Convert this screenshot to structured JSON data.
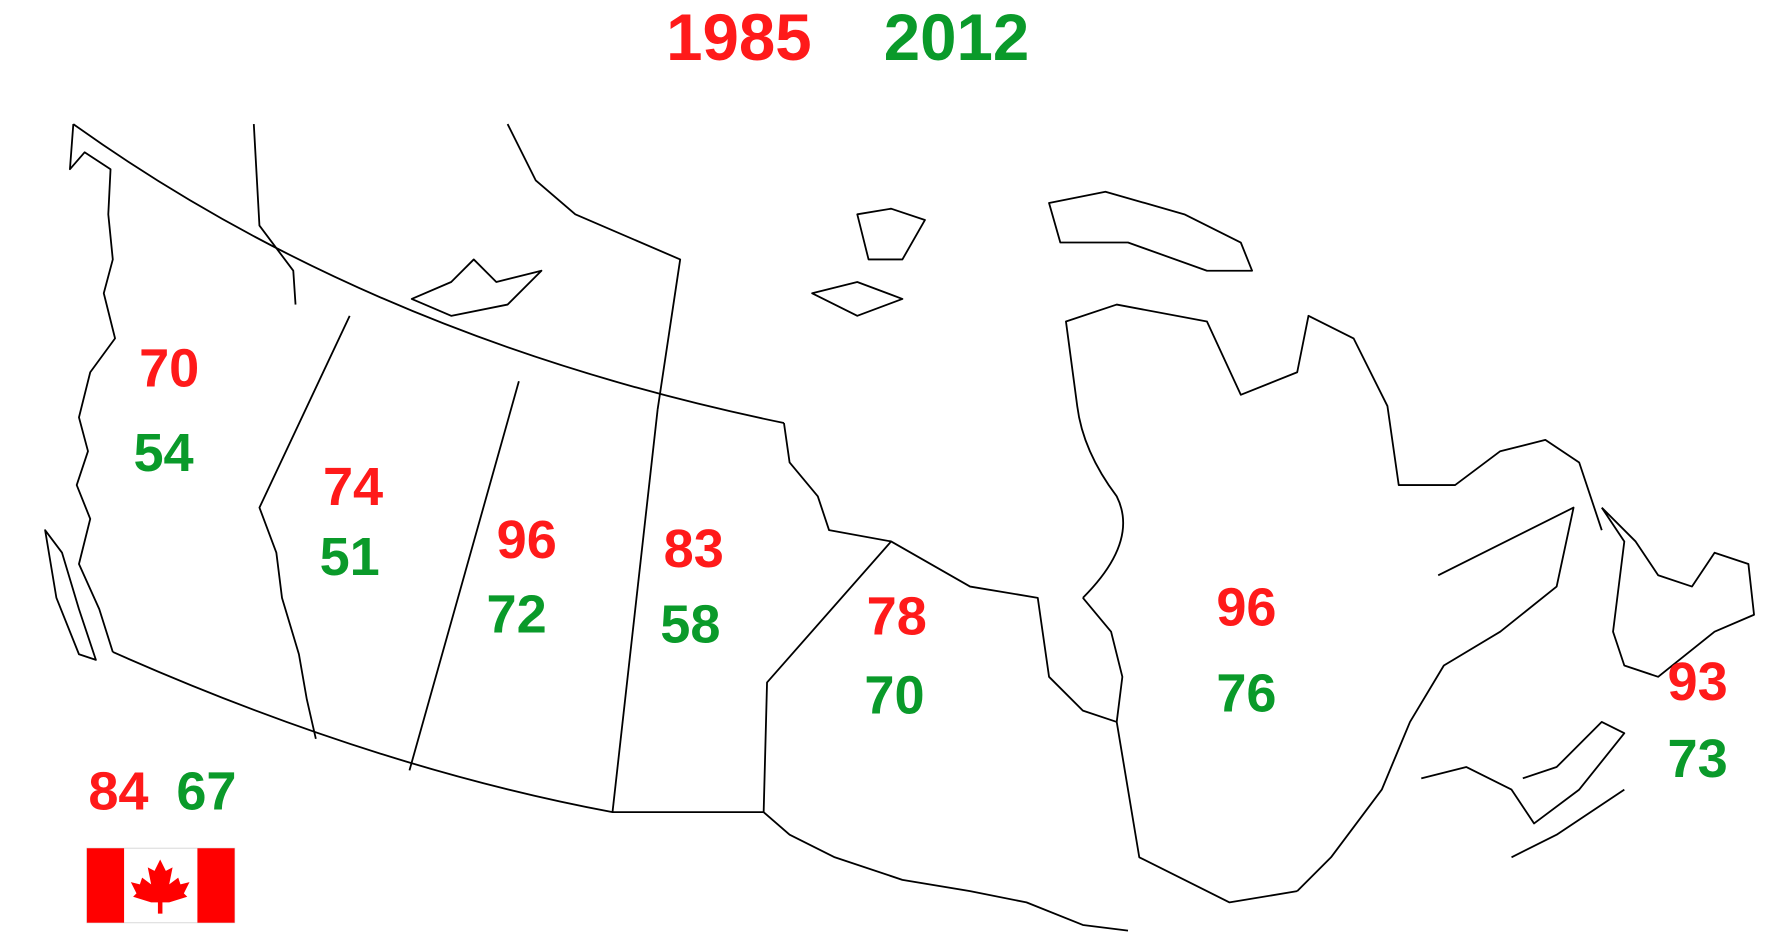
{
  "legend": [
    {
      "label": "1985",
      "color": "#ff1a1a"
    },
    {
      "label": "2012",
      "color": "#0a9a2a"
    }
  ],
  "regions": [
    {
      "values": [
        70,
        54
      ]
    },
    {
      "values": [
        74,
        51
      ]
    },
    {
      "values": [
        96,
        72
      ]
    },
    {
      "values": [
        83,
        58
      ]
    },
    {
      "values": [
        78,
        70
      ]
    },
    {
      "values": [
        96,
        76
      ]
    },
    {
      "values": [
        93,
        73
      ]
    }
  ],
  "national": {
    "values": [
      84,
      67
    ]
  }
}
